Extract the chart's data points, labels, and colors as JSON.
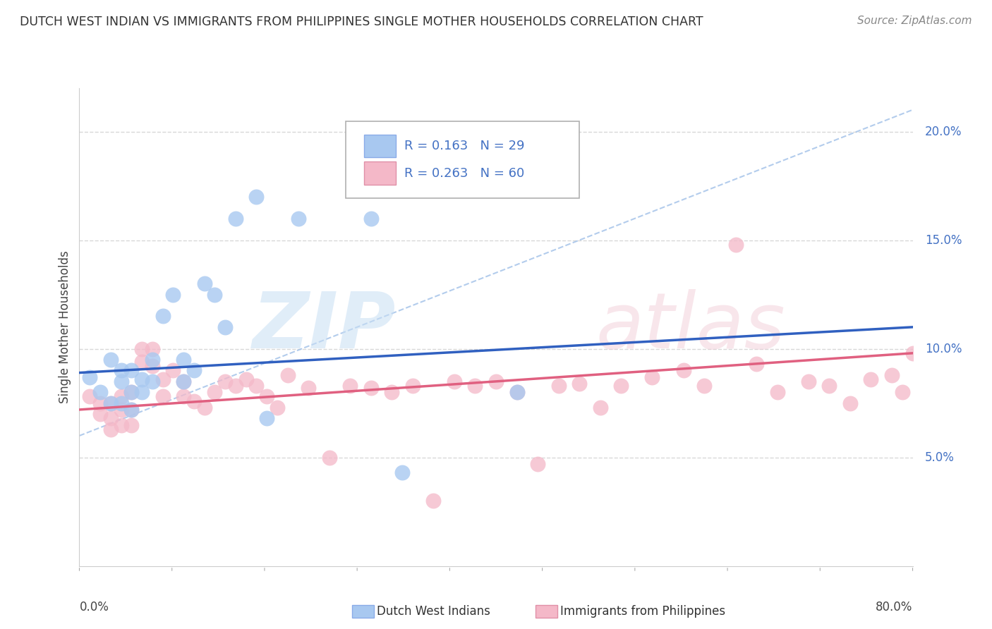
{
  "title": "DUTCH WEST INDIAN VS IMMIGRANTS FROM PHILIPPINES SINGLE MOTHER HOUSEHOLDS CORRELATION CHART",
  "source": "Source: ZipAtlas.com",
  "ylabel": "Single Mother Households",
  "legend1_r": "0.163",
  "legend1_n": "29",
  "legend2_r": "0.263",
  "legend2_n": "60",
  "blue_color": "#a8c8f0",
  "pink_color": "#f4b8c8",
  "blue_line_color": "#3060c0",
  "pink_line_color": "#e06080",
  "dash_line_color": "#a0c0e8",
  "grid_color": "#d8d8d8",
  "xlim": [
    0.0,
    0.8
  ],
  "ylim": [
    0.0,
    0.22
  ],
  "yticks": [
    0.05,
    0.1,
    0.15,
    0.2
  ],
  "ytick_labels": [
    "5.0%",
    "10.0%",
    "15.0%",
    "20.0%"
  ],
  "blue_line_x0": 0.0,
  "blue_line_y0": 0.089,
  "blue_line_x1": 0.8,
  "blue_line_y1": 0.11,
  "pink_line_x0": 0.0,
  "pink_line_y0": 0.072,
  "pink_line_x1": 0.8,
  "pink_line_y1": 0.098,
  "dash_line_x0": 0.0,
  "dash_line_y0": 0.06,
  "dash_line_x1": 0.8,
  "dash_line_y1": 0.21,
  "blue_scatter_x": [
    0.01,
    0.02,
    0.03,
    0.03,
    0.04,
    0.04,
    0.04,
    0.05,
    0.05,
    0.05,
    0.06,
    0.06,
    0.07,
    0.07,
    0.08,
    0.09,
    0.1,
    0.1,
    0.11,
    0.12,
    0.13,
    0.14,
    0.15,
    0.17,
    0.18,
    0.21,
    0.28,
    0.31,
    0.42
  ],
  "blue_scatter_y": [
    0.087,
    0.08,
    0.095,
    0.075,
    0.09,
    0.085,
    0.075,
    0.09,
    0.08,
    0.072,
    0.086,
    0.08,
    0.095,
    0.085,
    0.115,
    0.125,
    0.095,
    0.085,
    0.09,
    0.13,
    0.125,
    0.11,
    0.16,
    0.17,
    0.068,
    0.16,
    0.16,
    0.043,
    0.08
  ],
  "pink_scatter_x": [
    0.01,
    0.02,
    0.02,
    0.03,
    0.03,
    0.03,
    0.04,
    0.04,
    0.04,
    0.05,
    0.05,
    0.05,
    0.06,
    0.06,
    0.07,
    0.07,
    0.08,
    0.08,
    0.09,
    0.1,
    0.1,
    0.11,
    0.12,
    0.13,
    0.14,
    0.15,
    0.16,
    0.17,
    0.18,
    0.19,
    0.2,
    0.22,
    0.24,
    0.26,
    0.28,
    0.3,
    0.32,
    0.34,
    0.36,
    0.38,
    0.4,
    0.42,
    0.44,
    0.46,
    0.48,
    0.5,
    0.52,
    0.55,
    0.58,
    0.6,
    0.63,
    0.65,
    0.67,
    0.7,
    0.72,
    0.74,
    0.76,
    0.78,
    0.79,
    0.8
  ],
  "pink_scatter_y": [
    0.078,
    0.075,
    0.07,
    0.075,
    0.068,
    0.063,
    0.078,
    0.072,
    0.065,
    0.08,
    0.072,
    0.065,
    0.1,
    0.094,
    0.1,
    0.092,
    0.086,
    0.078,
    0.09,
    0.085,
    0.078,
    0.076,
    0.073,
    0.08,
    0.085,
    0.083,
    0.086,
    0.083,
    0.078,
    0.073,
    0.088,
    0.082,
    0.05,
    0.083,
    0.082,
    0.08,
    0.083,
    0.03,
    0.085,
    0.083,
    0.085,
    0.08,
    0.047,
    0.083,
    0.084,
    0.073,
    0.083,
    0.087,
    0.09,
    0.083,
    0.148,
    0.093,
    0.08,
    0.085,
    0.083,
    0.075,
    0.086,
    0.088,
    0.08,
    0.098
  ]
}
